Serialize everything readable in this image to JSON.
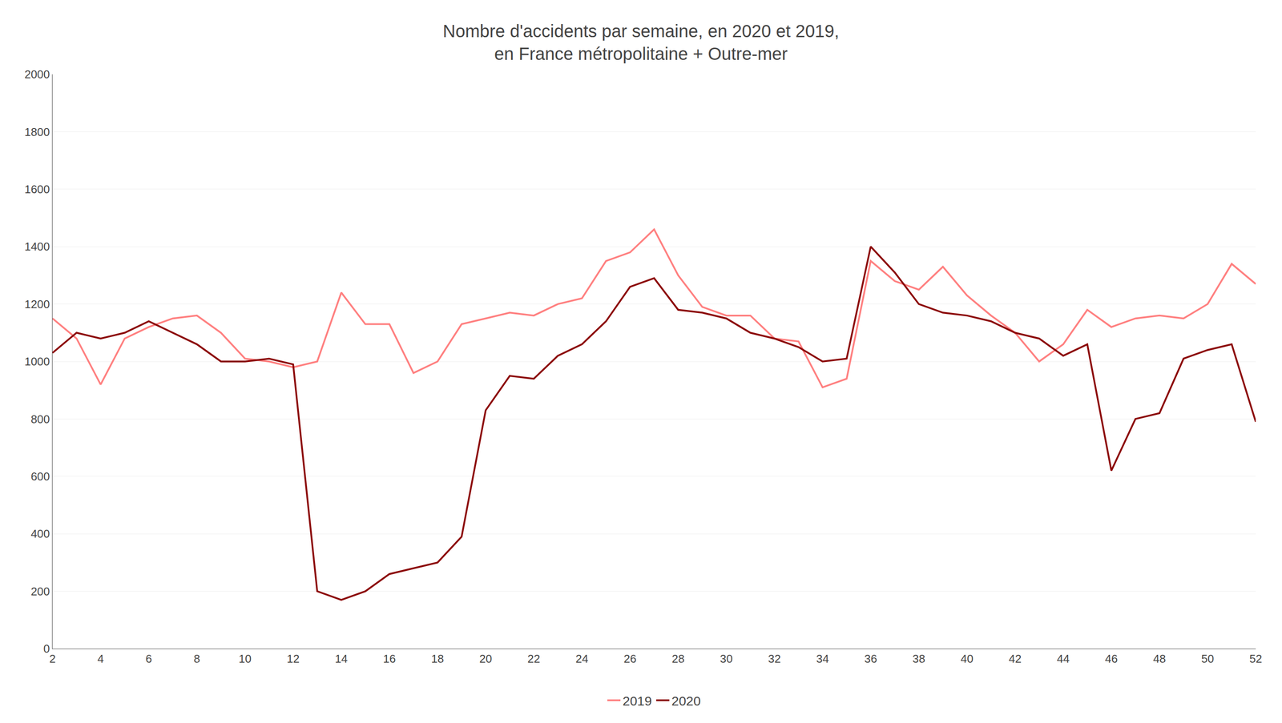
{
  "chart_data": {
    "type": "line",
    "title": "Nombre d'accidents par semaine, en 2020 et 2019,\nen France métropolitaine + Outre-mer",
    "x": [
      2,
      3,
      4,
      5,
      6,
      7,
      8,
      9,
      10,
      11,
      12,
      13,
      14,
      15,
      16,
      17,
      18,
      19,
      20,
      21,
      22,
      23,
      24,
      25,
      26,
      27,
      28,
      29,
      30,
      31,
      32,
      33,
      34,
      35,
      36,
      37,
      38,
      39,
      40,
      41,
      42,
      43,
      44,
      45,
      46,
      47,
      48,
      49,
      50,
      51,
      52
    ],
    "series": [
      {
        "name": "2019",
        "color": "#FF8080",
        "values": [
          1150,
          1080,
          920,
          1080,
          1120,
          1150,
          1160,
          1100,
          1010,
          1000,
          980,
          1000,
          1240,
          1130,
          1130,
          960,
          1000,
          1130,
          1150,
          1170,
          1160,
          1200,
          1220,
          1350,
          1380,
          1460,
          1300,
          1190,
          1160,
          1160,
          1080,
          1070,
          910,
          940,
          1350,
          1280,
          1250,
          1330,
          1230,
          1160,
          1100,
          1000,
          1060,
          1180,
          1120,
          1150,
          1160,
          1150,
          1200,
          1340,
          1270
        ]
      },
      {
        "name": "2020",
        "color": "#8B0000",
        "values": [
          1030,
          1100,
          1080,
          1100,
          1140,
          1100,
          1060,
          1000,
          1000,
          1010,
          990,
          200,
          170,
          200,
          260,
          280,
          300,
          390,
          830,
          950,
          940,
          1020,
          1060,
          1140,
          1260,
          1290,
          1180,
          1170,
          1150,
          1100,
          1080,
          1050,
          1000,
          1010,
          1400,
          1310,
          1200,
          1170,
          1160,
          1140,
          1100,
          1080,
          1020,
          1060,
          620,
          800,
          820,
          1010,
          1040,
          1060,
          790
        ]
      }
    ],
    "xlim": [
      2,
      52
    ],
    "xticks": [
      2,
      4,
      6,
      8,
      10,
      12,
      14,
      16,
      18,
      20,
      22,
      24,
      26,
      28,
      30,
      32,
      34,
      36,
      38,
      40,
      42,
      44,
      46,
      48,
      50,
      52
    ],
    "ylim": [
      0,
      2000
    ],
    "yticks": [
      0,
      200,
      400,
      600,
      800,
      1000,
      1200,
      1400,
      1600,
      1800,
      2000
    ],
    "grid": "y",
    "legend": "bottom"
  }
}
